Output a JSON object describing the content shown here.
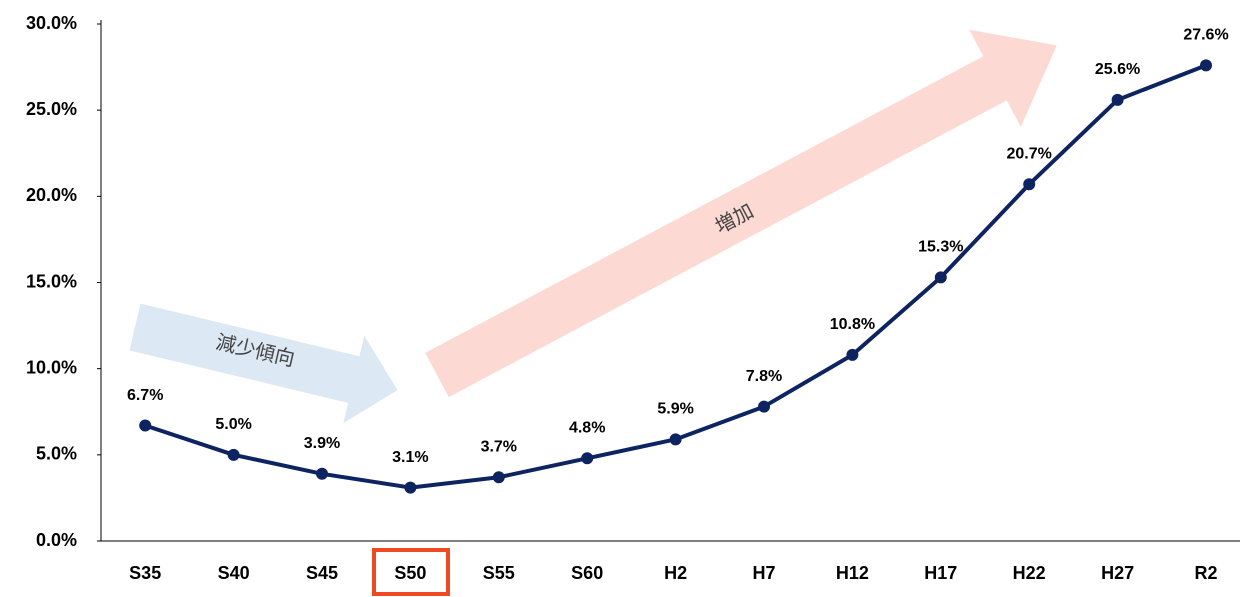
{
  "chart_data": {
    "type": "line",
    "categories": [
      "S35",
      "S40",
      "S45",
      "S50",
      "S55",
      "S60",
      "H2",
      "H7",
      "H12",
      "H17",
      "H22",
      "H27",
      "R2"
    ],
    "series": [
      {
        "color": "#0d2460",
        "values": [
          6.7,
          5.0,
          3.9,
          3.1,
          3.7,
          4.8,
          5.9,
          7.8,
          10.8,
          15.3,
          20.7,
          25.6,
          27.6
        ],
        "value_labels": [
          "6.7%",
          "5.0%",
          "3.9%",
          "3.1%",
          "3.7%",
          "4.8%",
          "5.9%",
          "7.8%",
          "10.8%",
          "15.3%",
          "20.7%",
          "25.6%",
          "27.6%"
        ]
      }
    ],
    "ylim": [
      0,
      30
    ],
    "yticks": [
      {
        "value": 0,
        "label": "0.0%"
      },
      {
        "value": 5,
        "label": "5.0%"
      },
      {
        "value": 10,
        "label": "10.0%"
      },
      {
        "value": 15,
        "label": "15.0%"
      },
      {
        "value": 20,
        "label": "20.0%"
      },
      {
        "value": 25,
        "label": "25.0%"
      },
      {
        "value": 30,
        "label": "30.0%"
      }
    ],
    "grid": false,
    "annotations": [
      "減少傾向",
      "増加"
    ]
  }
}
